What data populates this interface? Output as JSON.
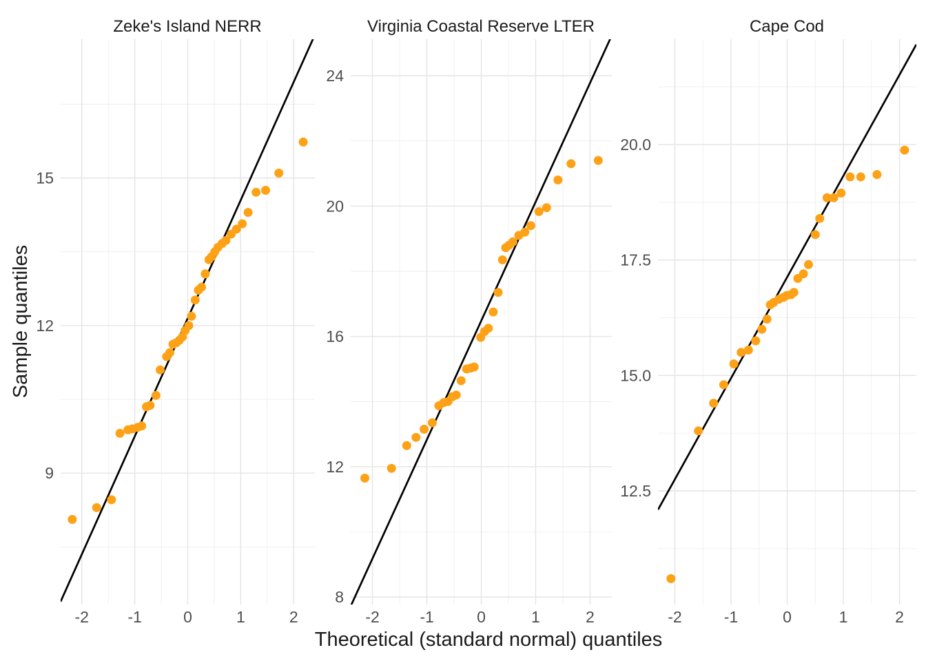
{
  "figure": {
    "x_axis_title": "Theoretical (standard normal) quantiles",
    "y_axis_title": "Sample quantiles"
  },
  "colors": {
    "background": "#FFFFFF",
    "point": "#FDA217",
    "qq_line": "#000000",
    "grid_major": "#E4E4E4",
    "grid_minor": "#ECECEC",
    "tick_label": "#4D4D4D",
    "title_text": "#1A1A1A"
  },
  "chart_data": [
    {
      "type": "scatter",
      "title": "Zeke's Island NERR",
      "xlabel": "Theoretical (standard normal) quantiles",
      "ylabel": "Sample quantiles",
      "x_domain": [
        -2.4,
        2.4
      ],
      "y_domain": [
        6.33,
        17.82
      ],
      "x_ticks": [
        -2,
        -1,
        0,
        1,
        2
      ],
      "x_tick_labels": [
        "-2",
        "-1",
        "0",
        "1",
        "2"
      ],
      "x_minor": [
        -1.5,
        -0.5,
        0.5,
        1.5
      ],
      "y_ticks": [
        9,
        12,
        15
      ],
      "y_tick_labels": [
        "9",
        "12",
        "15"
      ],
      "y_minor": [
        7.5,
        10.5,
        13.5,
        16.5
      ],
      "grid": true,
      "qq_line": {
        "intercept": 12.15,
        "slope": 2.4
      },
      "points": [
        [
          -2.18,
          8.06
        ],
        [
          -1.72,
          8.3
        ],
        [
          -1.44,
          8.46
        ],
        [
          -1.28,
          9.81
        ],
        [
          -1.13,
          9.88
        ],
        [
          -1.05,
          9.9
        ],
        [
          -0.95,
          9.93
        ],
        [
          -0.87,
          9.96
        ],
        [
          -0.78,
          10.35
        ],
        [
          -0.71,
          10.38
        ],
        [
          -0.6,
          10.58
        ],
        [
          -0.52,
          11.1
        ],
        [
          -0.4,
          11.37
        ],
        [
          -0.34,
          11.45
        ],
        [
          -0.28,
          11.62
        ],
        [
          -0.22,
          11.65
        ],
        [
          -0.16,
          11.7
        ],
        [
          -0.1,
          11.77
        ],
        [
          -0.05,
          11.9
        ],
        [
          0.02,
          12.0
        ],
        [
          0.07,
          12.19
        ],
        [
          0.14,
          12.52
        ],
        [
          0.2,
          12.72
        ],
        [
          0.26,
          12.78
        ],
        [
          0.33,
          13.05
        ],
        [
          0.4,
          13.34
        ],
        [
          0.45,
          13.4
        ],
        [
          0.51,
          13.5
        ],
        [
          0.57,
          13.59
        ],
        [
          0.65,
          13.67
        ],
        [
          0.72,
          13.73
        ],
        [
          0.82,
          13.86
        ],
        [
          0.92,
          13.96
        ],
        [
          1.03,
          14.07
        ],
        [
          1.14,
          14.3
        ],
        [
          1.29,
          14.71
        ],
        [
          1.47,
          14.75
        ],
        [
          1.72,
          15.1
        ],
        [
          2.18,
          15.73
        ]
      ]
    },
    {
      "type": "scatter",
      "title": "Virginia Coastal Reserve LTER",
      "xlabel": "Theoretical (standard normal) quantiles",
      "ylabel": "Sample quantiles",
      "x_domain": [
        -2.4,
        2.4
      ],
      "y_domain": [
        7.77,
        25.12
      ],
      "x_ticks": [
        -2,
        -1,
        0,
        1,
        2
      ],
      "x_tick_labels": [
        "-2",
        "-1",
        "0",
        "1",
        "2"
      ],
      "x_minor": [
        -1.5,
        -0.5,
        0.5,
        1.5
      ],
      "y_ticks": [
        8,
        12,
        16,
        20,
        24
      ],
      "y_tick_labels": [
        "8",
        "12",
        "16",
        "20",
        "24"
      ],
      "y_minor": [
        10,
        14,
        18,
        22
      ],
      "grid": true,
      "qq_line": {
        "intercept": 16.48,
        "slope": 3.65
      },
      "points": [
        [
          -2.14,
          11.65
        ],
        [
          -1.65,
          11.95
        ],
        [
          -1.37,
          12.65
        ],
        [
          -1.2,
          12.9
        ],
        [
          -1.05,
          13.15
        ],
        [
          -0.9,
          13.35
        ],
        [
          -0.78,
          13.87
        ],
        [
          -0.69,
          13.97
        ],
        [
          -0.61,
          14.0
        ],
        [
          -0.53,
          14.15
        ],
        [
          -0.46,
          14.2
        ],
        [
          -0.37,
          14.64
        ],
        [
          -0.27,
          15.0
        ],
        [
          -0.19,
          15.03
        ],
        [
          -0.13,
          15.06
        ],
        [
          -0.01,
          15.97
        ],
        [
          0.06,
          16.15
        ],
        [
          0.13,
          16.25
        ],
        [
          0.22,
          16.75
        ],
        [
          0.31,
          17.35
        ],
        [
          0.39,
          18.35
        ],
        [
          0.45,
          18.72
        ],
        [
          0.51,
          18.8
        ],
        [
          0.58,
          18.9
        ],
        [
          0.69,
          19.1
        ],
        [
          0.8,
          19.2
        ],
        [
          0.91,
          19.4
        ],
        [
          1.06,
          19.83
        ],
        [
          1.2,
          19.95
        ],
        [
          1.41,
          20.8
        ],
        [
          1.65,
          21.3
        ],
        [
          2.15,
          21.4
        ]
      ]
    },
    {
      "type": "scatter",
      "title": "Cape Cod",
      "xlabel": "Theoretical (standard normal) quantiles",
      "ylabel": "Sample quantiles",
      "x_domain": [
        -2.3,
        2.3
      ],
      "y_domain": [
        10.04,
        22.28
      ],
      "x_ticks": [
        -2,
        -1,
        0,
        1,
        2
      ],
      "x_tick_labels": [
        "-2",
        "-1",
        "0",
        "1",
        "2"
      ],
      "x_minor": [
        -1.5,
        -0.5,
        0.5,
        1.5
      ],
      "y_ticks": [
        12.5,
        15.0,
        17.5,
        20.0
      ],
      "y_tick_labels": [
        "12.5",
        "15.0",
        "17.5",
        "20.0"
      ],
      "y_minor": [
        11.25,
        13.75,
        16.25,
        18.75,
        21.25
      ],
      "grid": true,
      "qq_line": {
        "intercept": 17.13,
        "slope": 2.19
      },
      "points": [
        [
          -2.07,
          10.6
        ],
        [
          -1.58,
          13.8
        ],
        [
          -1.31,
          14.4
        ],
        [
          -1.13,
          14.8
        ],
        [
          -0.95,
          15.25
        ],
        [
          -0.82,
          15.5
        ],
        [
          -0.69,
          15.55
        ],
        [
          -0.56,
          15.75
        ],
        [
          -0.45,
          16.0
        ],
        [
          -0.36,
          16.22
        ],
        [
          -0.3,
          16.53
        ],
        [
          -0.24,
          16.58
        ],
        [
          -0.15,
          16.65
        ],
        [
          -0.07,
          16.69
        ],
        [
          -0.01,
          16.73
        ],
        [
          0.07,
          16.75
        ],
        [
          0.12,
          16.8
        ],
        [
          0.19,
          17.1
        ],
        [
          0.29,
          17.2
        ],
        [
          0.38,
          17.4
        ],
        [
          0.5,
          18.05
        ],
        [
          0.58,
          18.4
        ],
        [
          0.71,
          18.85
        ],
        [
          0.83,
          18.85
        ],
        [
          0.96,
          18.95
        ],
        [
          1.12,
          19.3
        ],
        [
          1.31,
          19.3
        ],
        [
          1.6,
          19.35
        ],
        [
          2.09,
          19.88
        ]
      ]
    }
  ]
}
